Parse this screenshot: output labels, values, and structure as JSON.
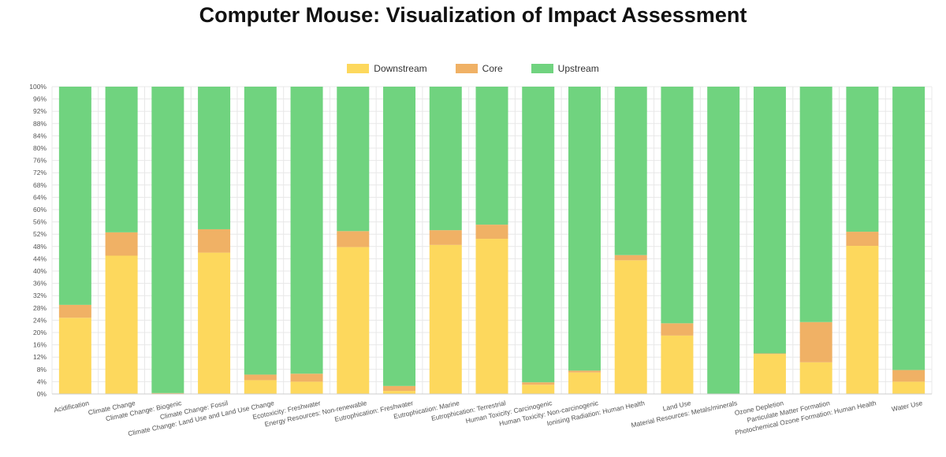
{
  "title": "Computer Mouse: Visualization of Impact Assessment",
  "chart_data": {
    "type": "bar",
    "stacked": true,
    "title": "Computer Mouse: Visualization of Impact Assessment",
    "xlabel": "",
    "ylabel": "",
    "ylim": [
      0,
      100
    ],
    "yticks": [
      "0%",
      "4%",
      "8%",
      "12%",
      "16%",
      "20%",
      "24%",
      "28%",
      "32%",
      "36%",
      "40%",
      "44%",
      "48%",
      "52%",
      "56%",
      "60%",
      "64%",
      "68%",
      "72%",
      "76%",
      "80%",
      "84%",
      "88%",
      "92%",
      "96%",
      "100%"
    ],
    "grid": true,
    "legend_position": "top-center",
    "categories": [
      "Acidification",
      "Climate Change",
      "Climate Change: Biogenic",
      "Climate Change: Fossil",
      "Climate Change: Land Use and Land Use Change",
      "Ecotoxicity: Freshwater",
      "Energy Resources: Non-renewable",
      "Eutrophication: Freshwater",
      "Eutrophication: Marine",
      "Eutrophication: Terrestrial",
      "Human Toxicity: Carcinogenic",
      "Human Toxicity: Non-carcinogenic",
      "Ionising Radiation: Human Health",
      "Land Use",
      "Material Resources: Metals/minerals",
      "Ozone Depletion",
      "Particulate Matter Formation",
      "Photochemical Ozone Formation: Human Health",
      "Water Use"
    ],
    "series": [
      {
        "name": "Downstream",
        "color": "#fdd85d",
        "values": [
          24.8,
          45.0,
          0.0,
          46.0,
          4.5,
          4.0,
          47.8,
          1.0,
          48.5,
          50.5,
          3.0,
          7.0,
          43.5,
          19.0,
          0.0,
          13.0,
          10.3,
          48.2,
          4.0
        ]
      },
      {
        "name": "Core",
        "color": "#f0b165",
        "values": [
          4.2,
          7.6,
          0.3,
          7.6,
          1.8,
          2.6,
          5.2,
          1.6,
          4.8,
          4.6,
          0.8,
          0.6,
          1.7,
          4.0,
          0.1,
          0.2,
          13.1,
          4.6,
          3.8
        ]
      },
      {
        "name": "Upstream",
        "color": "#70d37f",
        "values": [
          71.0,
          47.4,
          99.7,
          46.4,
          93.7,
          93.4,
          47.0,
          97.4,
          46.7,
          44.9,
          96.2,
          92.4,
          54.8,
          77.0,
          99.9,
          86.8,
          76.6,
          47.2,
          92.2
        ]
      }
    ]
  }
}
